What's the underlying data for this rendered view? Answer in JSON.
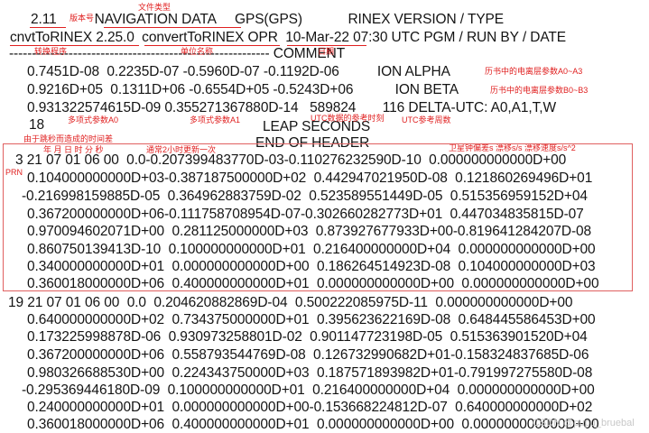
{
  "header": {
    "version_line": "2.11          NAVIGATION DATA     GPS(GPS)            RINEX VERSION / TYPE",
    "program_line": "cnvtToRINEX 2.25.0  convertToRINEX OPR  10-Mar-22 07:30 UTC PGM / RUN BY / DATE",
    "comment_line": "--------------------------------------------------------- COMMENT",
    "ion_alpha_line": "0.7451D-08  0.2235D-07 -0.5960D-07 -0.1192D-06          ION ALPHA",
    "ion_beta_line": "0.9216D+05  0.1311D+06 -0.6554D+05 -0.5243D+06           ION BETA",
    "delta_utc_line": "0.931322574615D-09 0.355271367880D-14   589824       116 DELTA-UTC: A0,A1,T,W",
    "leap_value_line": "18",
    "leap_label_line": "LEAP SECONDS",
    "end_header_line": "END OF HEADER"
  },
  "record1": {
    "lines": [
      "3 21 07 01 06 00  0.0-0.207399483770D-03-0.110276232590D-10  0.000000000000D+00",
      "0.104000000000D+03-0.387187500000D+02  0.442947021950D-08  0.121860269496D+01",
      "-0.216998159885D-05  0.364962883759D-02  0.523589551449D-05  0.515356959152D+04",
      "0.367200000000D+06-0.111758708954D-07-0.302660282773D+01  0.447034835815D-07",
      "0.970094602071D+00  0.281125000000D+03  0.873927677933D+00-0.819641284207D-08",
      "0.860750139413D-10  0.100000000000D+01  0.216400000000D+04  0.000000000000D+00",
      "0.340000000000D+01  0.000000000000D+00  0.186264514923D-08  0.104000000000D+03",
      "0.360018000000D+06  0.400000000000D+01  0.000000000000D+00  0.000000000000D+00"
    ]
  },
  "record2": {
    "lines": [
      "19 21 07 01 06 00  0.0  0.204620882869D-04  0.500222085975D-11  0.000000000000D+00",
      "0.640000000000D+02  0.734375000000D+01  0.395623622169D-08  0.648445586453D+00",
      "0.173225998878D-06  0.930973258801D-02  0.901147723198D-05  0.515363901520D+04",
      "0.367200000000D+06  0.558793544769D-08  0.126732990682D+01-0.158324837685D-06",
      "0.980326688530D+00  0.224343750000D+03  0.187571893982D+01-0.791997275580D-08",
      "-0.295369446180D-09  0.100000000000D+01  0.216400000000D+04  0.000000000000D+00",
      "0.240000000000D+01  0.000000000000D+00-0.153668224812D-07  0.640000000000D+02",
      "0.360018000000D+06  0.400000000000D+01  0.000000000000D+00  0.000000000000D+00"
    ]
  },
  "annotations": {
    "version_number": "版本号",
    "file_type": "文件类型",
    "conversion_program": "转换程序",
    "unit_name": "单位名称",
    "date": "日期",
    "ion_alpha": "历书中的电离层参数A0~A3",
    "ion_beta": "历书中的电离层参数B0~B3",
    "coef_a0": "多项式参数A0",
    "coef_a1": "多项式参数A1",
    "utc_ref_time": "UTC数据的参考时刻",
    "utc_ref_week": "UTC参考周数",
    "leap_seconds": "由于跳秒而造成的时间差",
    "epoch_fields": "年 月 日 时 分 秒",
    "update_interval": "通常2小时更新一次",
    "clock_params": "卫星钟偏差s 漂移s/s 漂移速度s/s^2",
    "prn": "PRN"
  },
  "watermark": "CSDN @pupu_bruebal"
}
